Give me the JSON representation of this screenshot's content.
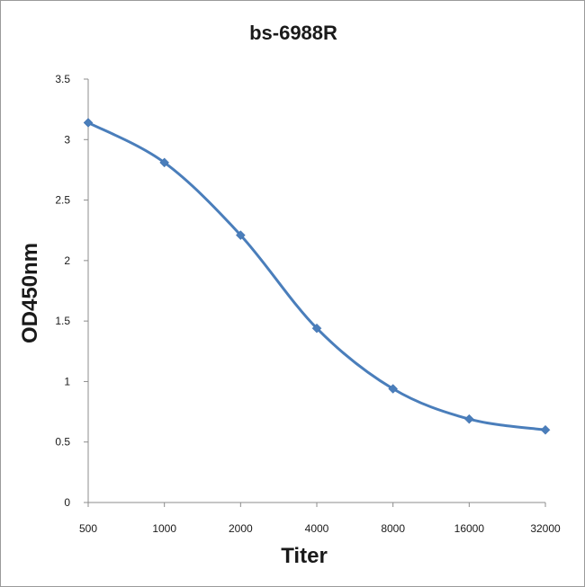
{
  "chart_data": {
    "type": "line",
    "title": "bs-6988R",
    "xlabel": "Titer",
    "ylabel": "OD450nm",
    "categories": [
      "500",
      "1000",
      "2000",
      "4000",
      "8000",
      "16000",
      "32000"
    ],
    "series": [
      {
        "values": [
          3.14,
          2.81,
          2.21,
          1.44,
          0.94,
          0.69,
          0.6
        ]
      }
    ],
    "ylim": [
      0,
      3.5
    ],
    "yticks": [
      "0",
      "0.5",
      "1",
      "1.5",
      "2",
      "2.5",
      "3",
      "3.5"
    ],
    "grid": false,
    "legend": "none",
    "smooth": true,
    "marker": "diamond",
    "colors": {
      "series": "#4a7ebb",
      "axis": "#8c8c8c",
      "text": "#1a1a1a"
    }
  }
}
